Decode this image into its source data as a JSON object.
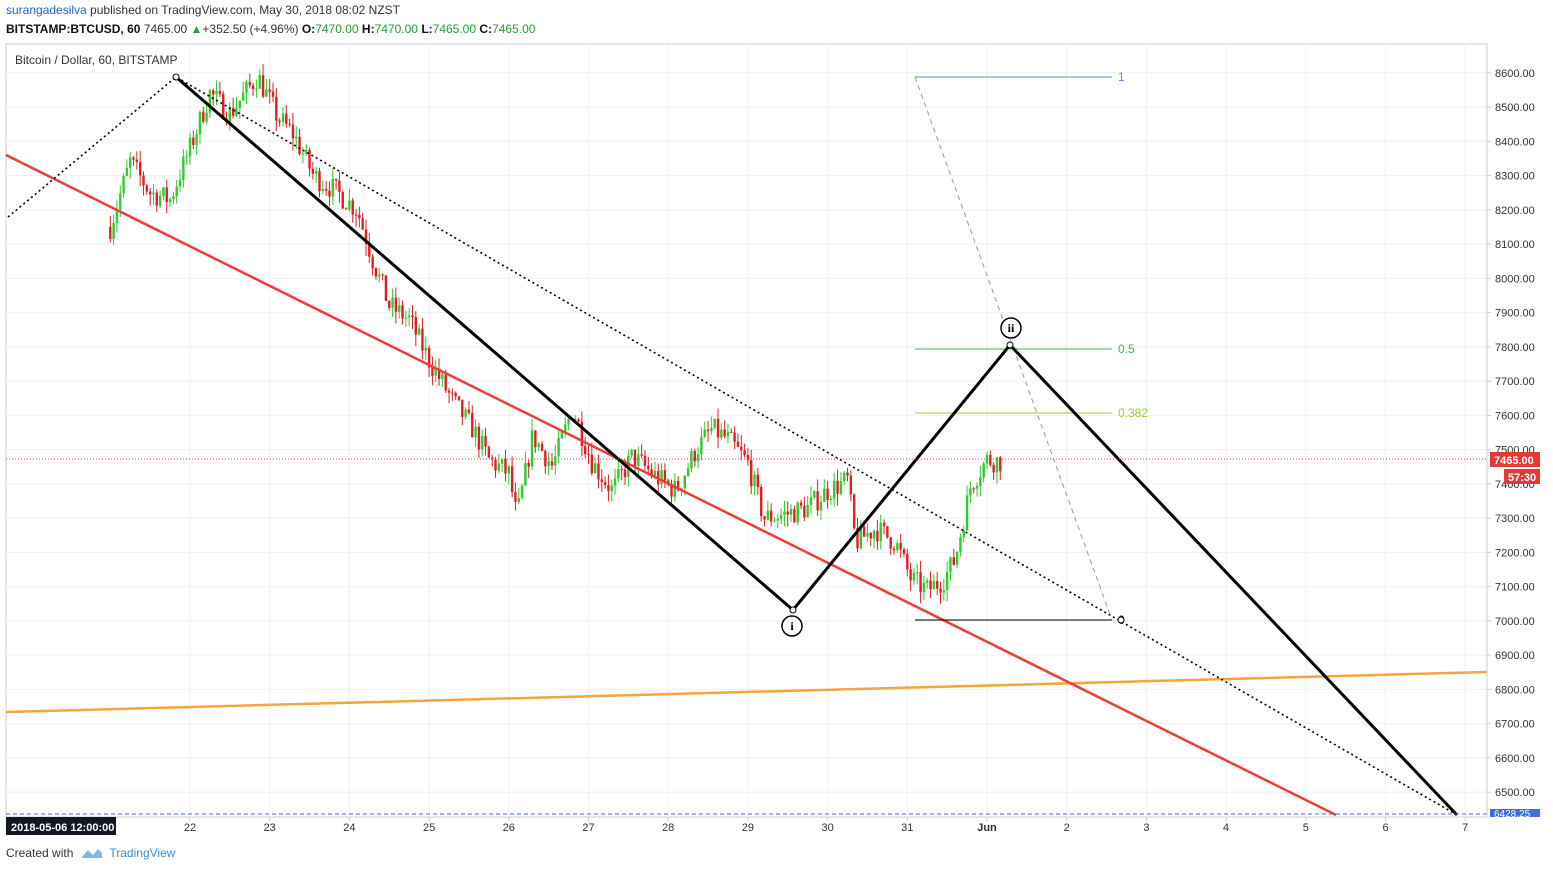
{
  "header": {
    "author": "surangadesilva",
    "published_text": " published on TradingView.com, May 30, 2018 08:02 NZST",
    "symbol": "BITSTAMP:BTCUSD, 60",
    "last": "7465.00",
    "change_arrow": "▲",
    "change": "+352.50 (+4.96%)",
    "o_label": "O:",
    "o": "7470.00",
    "h_label": "H:",
    "h": "7470.00",
    "l_label": "L:",
    "l": "7465.00",
    "c_label": "C:",
    "c": "7465.00"
  },
  "footer": {
    "created_with": "Created with",
    "brand": "TradingView"
  },
  "colors": {
    "up": "#2ecc2e",
    "down": "#e02020",
    "trend_red": "#f23b36",
    "trend_orange": "#f7a43c",
    "wave": "#000000",
    "fib_green": "#4caf50",
    "fib_lime": "#9acd32",
    "fib_blue": "#5b8fd6",
    "price_line": "#e53935"
  },
  "chart_data": {
    "type": "candlestick",
    "title": "Bitcoin / Dollar, 60, BITSTAMP",
    "ylim": [
      6422,
      8690
    ],
    "y_ticks": [
      "8600.00",
      "8500.00",
      "8400.00",
      "8300.00",
      "8200.00",
      "8100.00",
      "8000.00",
      "7900.00",
      "7800.00",
      "7700.00",
      "7600.00",
      "7500.00",
      "7400.00",
      "7300.00",
      "7200.00",
      "7100.00",
      "7000.00",
      "6900.00",
      "6800.00",
      "6700.00",
      "6600.00",
      "6500.00"
    ],
    "x_ticks": [
      "22",
      "23",
      "24",
      "25",
      "26",
      "27",
      "28",
      "29",
      "30",
      "31",
      "Jun",
      "2",
      "3",
      "4",
      "5",
      "6",
      "7"
    ],
    "crosshair_date": "2018-05-06 12:00:00",
    "last_price_label": "7465.00",
    "countdown_label": "57:30",
    "bottom_price_label": "6428.25",
    "price_path": [
      [
        21.0,
        8150
      ],
      [
        21.25,
        8340
      ],
      [
        21.5,
        8250
      ],
      [
        21.75,
        8230
      ],
      [
        22.0,
        8380
      ],
      [
        22.25,
        8540
      ],
      [
        22.5,
        8480
      ],
      [
        22.85,
        8590
      ],
      [
        23.1,
        8470
      ],
      [
        23.3,
        8420
      ],
      [
        23.55,
        8300
      ],
      [
        23.8,
        8260
      ],
      [
        24.1,
        8200
      ],
      [
        24.3,
        8050
      ],
      [
        24.5,
        7920
      ],
      [
        24.75,
        7880
      ],
      [
        25.0,
        7760
      ],
      [
        25.3,
        7640
      ],
      [
        25.55,
        7560
      ],
      [
        25.75,
        7470
      ],
      [
        26.0,
        7430
      ],
      [
        26.1,
        7300
      ],
      [
        26.3,
        7540
      ],
      [
        26.55,
        7450
      ],
      [
        26.8,
        7620
      ],
      [
        27.05,
        7460
      ],
      [
        27.3,
        7380
      ],
      [
        27.55,
        7480
      ],
      [
        27.85,
        7420
      ],
      [
        28.1,
        7380
      ],
      [
        28.35,
        7500
      ],
      [
        28.55,
        7560
      ],
      [
        28.75,
        7530
      ],
      [
        29.0,
        7460
      ],
      [
        29.2,
        7300
      ],
      [
        29.45,
        7310
      ],
      [
        29.75,
        7330
      ],
      [
        30.0,
        7380
      ],
      [
        30.25,
        7410
      ],
      [
        30.35,
        7230
      ],
      [
        30.6,
        7270
      ],
      [
        30.85,
        7230
      ],
      [
        31.05,
        7120
      ],
      [
        31.25,
        7090
      ],
      [
        31.45,
        7120
      ],
      [
        31.6,
        7180
      ],
      [
        31.8,
        7400
      ],
      [
        32.0,
        7470
      ],
      [
        32.2,
        7465
      ]
    ],
    "fib_levels": [
      {
        "level": "1",
        "price": 8590
      },
      {
        "level": "0.5",
        "price": 7795
      },
      {
        "level": "0.382",
        "price": 7607
      },
      {
        "level": "0",
        "price": 6995
      }
    ],
    "wave_labels": [
      "i",
      "ii"
    ],
    "wave_path": [
      [
        22.85,
        8590
      ],
      [
        31.0,
        7025
      ],
      [
        33.5,
        7800
      ],
      [
        38.9,
        6430
      ]
    ]
  }
}
